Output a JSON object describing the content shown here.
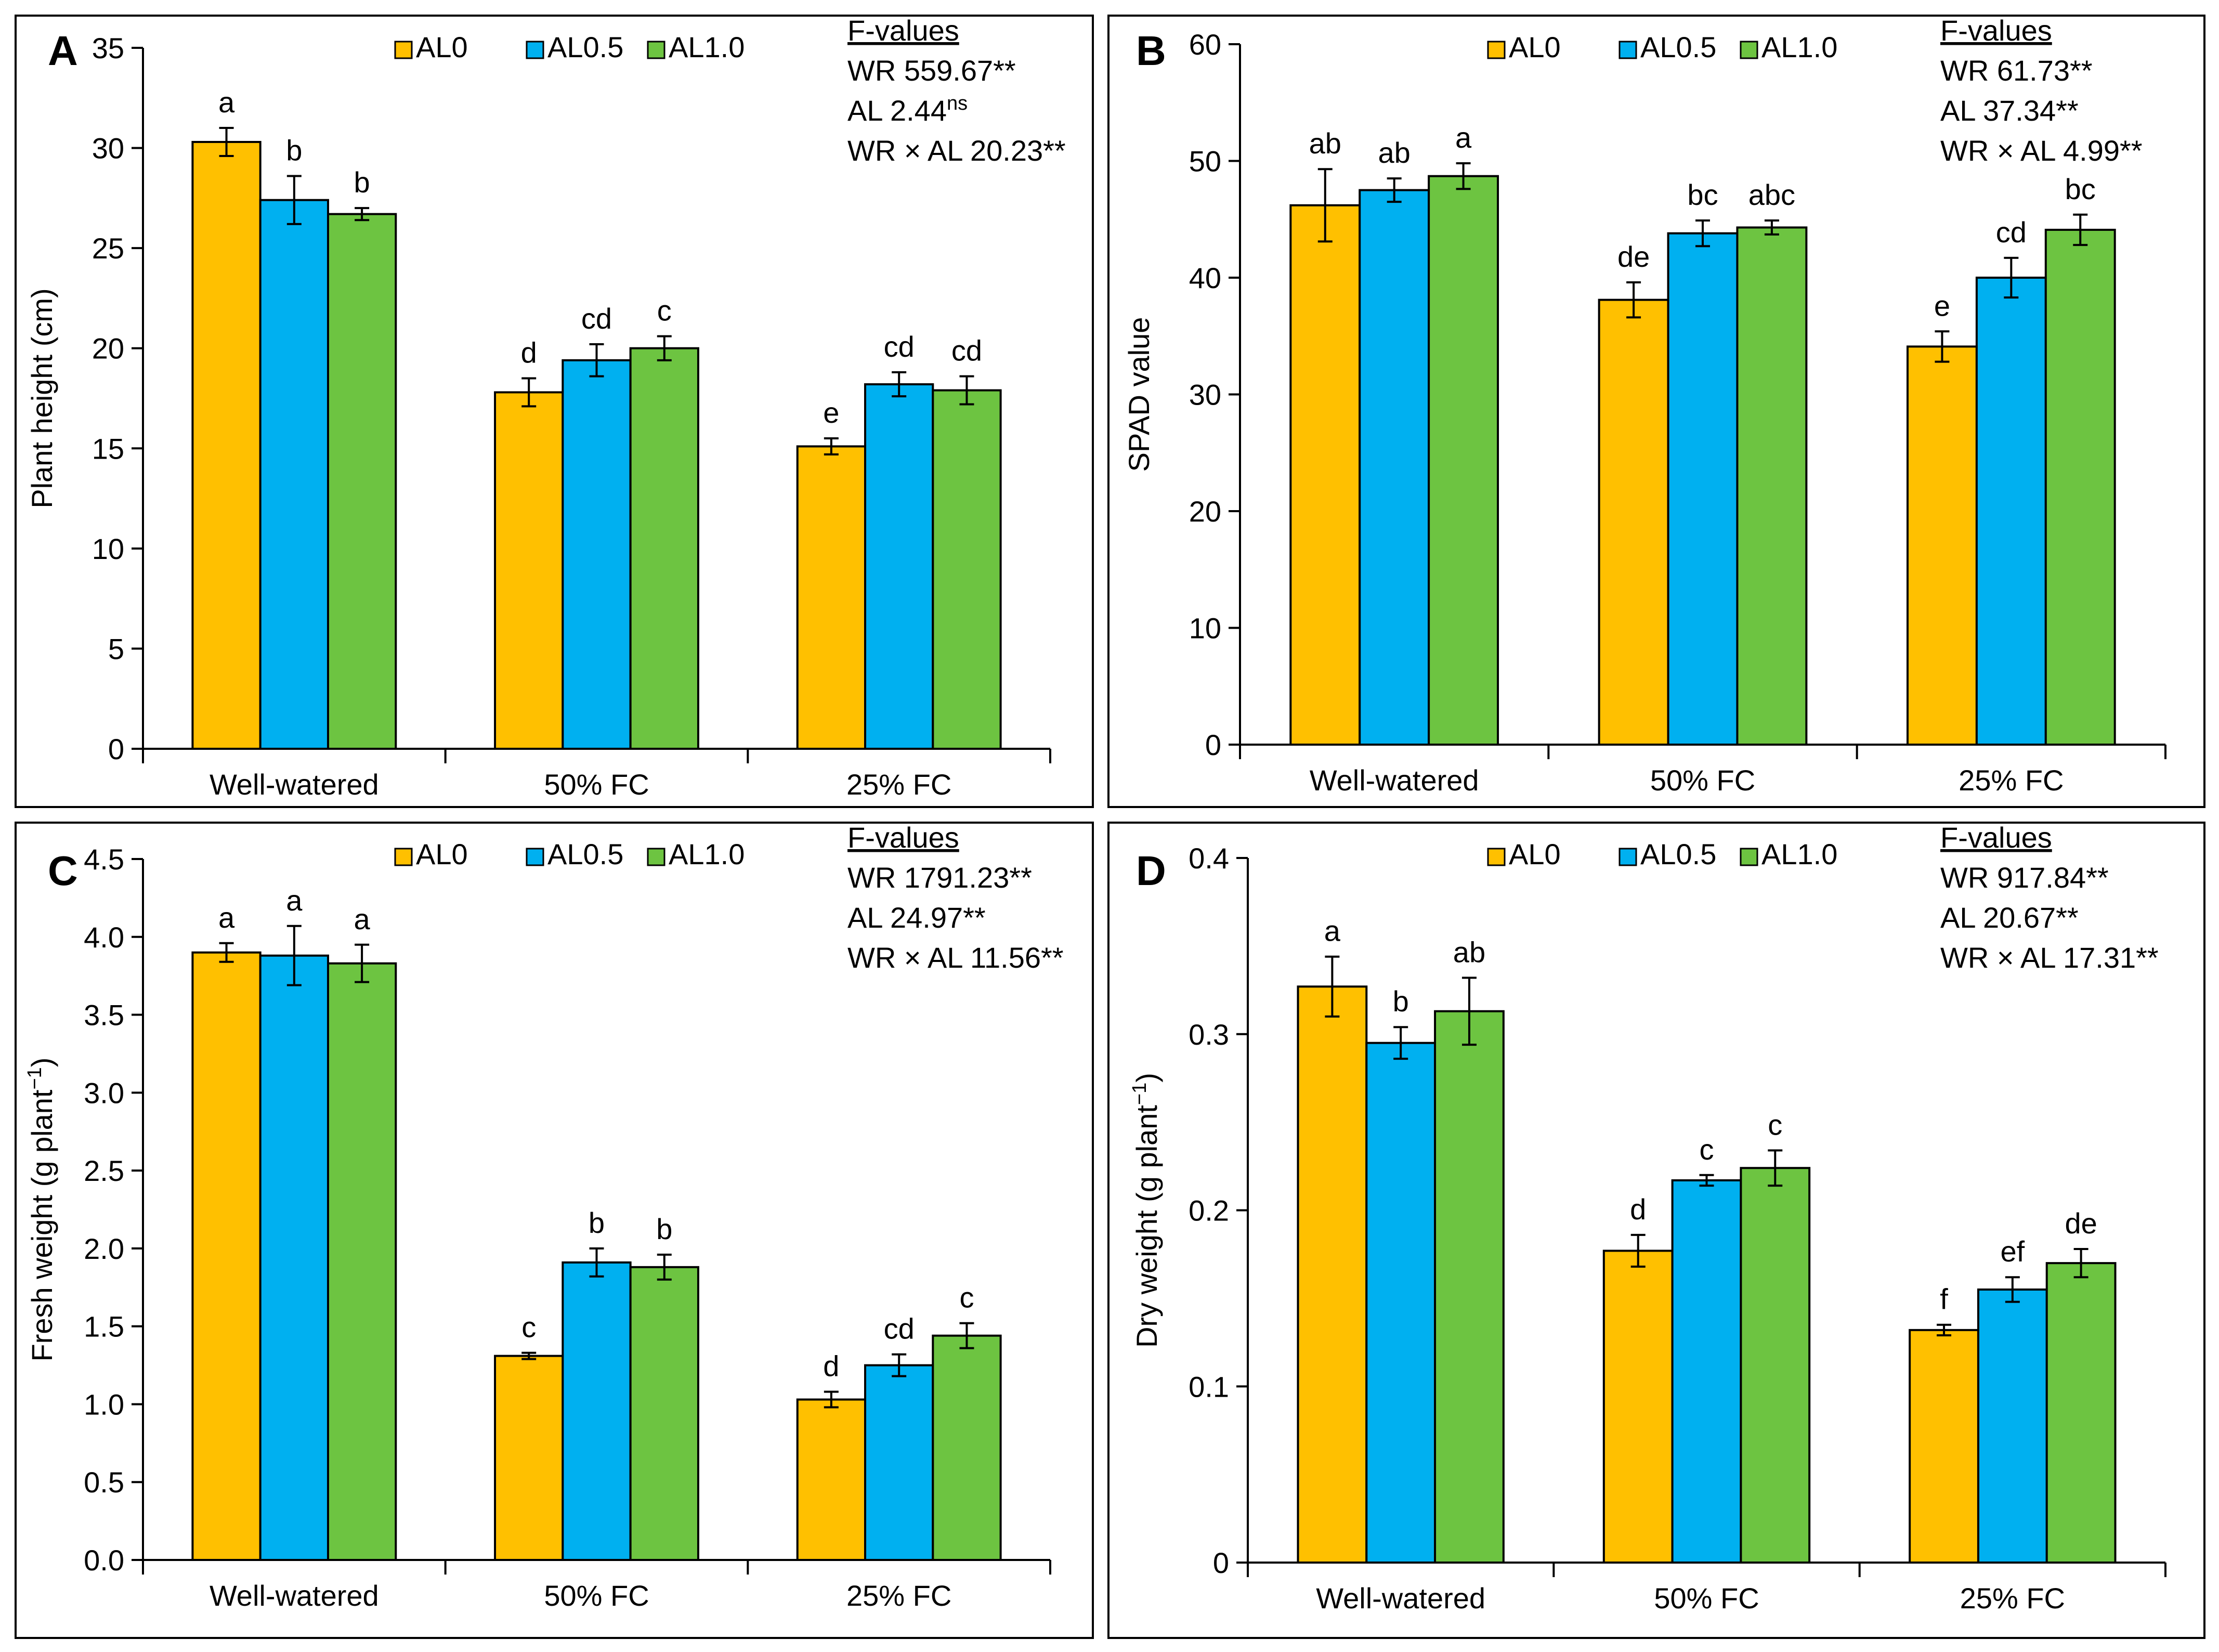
{
  "figure": {
    "legend_labels": [
      "AL0",
      "AL0.5",
      "AL1.0"
    ],
    "stats_heading": "F-values"
  },
  "colors": {
    "AL0": "#FFC000",
    "AL0.5": "#00B0F0",
    "AL1.0": "#6DC441",
    "frame": "#000000"
  },
  "chart_data": [
    {
      "id": "A",
      "type": "bar",
      "panel_label": "A",
      "ylabel": "Plant height (cm)",
      "ylabel_superscript": "",
      "ylabel_suffix": "",
      "categories": [
        "Well-watered",
        "50% FC",
        "25% FC"
      ],
      "ylim": [
        0,
        35
      ],
      "yticks": [
        "0",
        "5",
        "10",
        "15",
        "20",
        "25",
        "30",
        "35"
      ],
      "series": [
        {
          "name": "AL0",
          "values": [
            30.3,
            17.8,
            15.1
          ],
          "errors": [
            0.7,
            0.7,
            0.4
          ],
          "letters": [
            "a",
            "d",
            "e"
          ]
        },
        {
          "name": "AL0.5",
          "values": [
            27.4,
            19.4,
            18.2
          ],
          "errors": [
            1.2,
            0.8,
            0.6
          ],
          "letters": [
            "b",
            "cd",
            "cd"
          ]
        },
        {
          "name": "AL1.0",
          "values": [
            26.7,
            20.0,
            17.9
          ],
          "errors": [
            0.3,
            0.6,
            0.7
          ],
          "letters": [
            "b",
            "c",
            "cd"
          ]
        }
      ],
      "stats": [
        {
          "label": "WR",
          "value": "559.67",
          "sig": "**"
        },
        {
          "label": "AL",
          "value": "2.44",
          "sig": "ns"
        },
        {
          "label": "WR × AL",
          "value": "20.23",
          "sig": "**"
        }
      ]
    },
    {
      "id": "B",
      "type": "bar",
      "panel_label": "B",
      "ylabel": "SPAD value",
      "ylabel_superscript": "",
      "ylabel_suffix": "",
      "categories": [
        "Well-watered",
        "50% FC",
        "25% FC"
      ],
      "ylim": [
        0,
        60
      ],
      "yticks": [
        "0",
        "10",
        "20",
        "30",
        "40",
        "50",
        "60"
      ],
      "series": [
        {
          "name": "AL0",
          "values": [
            46.2,
            38.1,
            34.1
          ],
          "errors": [
            3.1,
            1.5,
            1.3
          ],
          "letters": [
            "ab",
            "de",
            "e"
          ]
        },
        {
          "name": "AL0.5",
          "values": [
            47.5,
            43.8,
            40.0
          ],
          "errors": [
            1.0,
            1.1,
            1.7
          ],
          "letters": [
            "ab",
            "bc",
            "cd"
          ]
        },
        {
          "name": "AL1.0",
          "values": [
            48.7,
            44.3,
            44.1
          ],
          "errors": [
            1.1,
            0.6,
            1.3
          ],
          "letters": [
            "a",
            "abc",
            "bc"
          ]
        }
      ],
      "stats": [
        {
          "label": "WR",
          "value": "61.73",
          "sig": "**"
        },
        {
          "label": "AL",
          "value": "37.34",
          "sig": "**"
        },
        {
          "label": "WR × AL",
          "value": "4.99",
          "sig": "**"
        }
      ]
    },
    {
      "id": "C",
      "type": "bar",
      "panel_label": "C",
      "ylabel": "Fresh weight (g plant",
      "ylabel_superscript": "−1",
      "ylabel_suffix": ")",
      "categories": [
        "Well-watered",
        "50% FC",
        "25% FC"
      ],
      "ylim": [
        0,
        4.5
      ],
      "yticks": [
        "0.0",
        "0.5",
        "1.0",
        "1.5",
        "2.0",
        "2.5",
        "3.0",
        "3.5",
        "4.0",
        "4.5"
      ],
      "series": [
        {
          "name": "AL0",
          "values": [
            3.9,
            1.31,
            1.03
          ],
          "errors": [
            0.06,
            0.02,
            0.05
          ],
          "letters": [
            "a",
            "c",
            "d"
          ]
        },
        {
          "name": "AL0.5",
          "values": [
            3.88,
            1.91,
            1.25
          ],
          "errors": [
            0.19,
            0.09,
            0.07
          ],
          "letters": [
            "a",
            "b",
            "cd"
          ]
        },
        {
          "name": "AL1.0",
          "values": [
            3.83,
            1.88,
            1.44
          ],
          "errors": [
            0.12,
            0.08,
            0.08
          ],
          "letters": [
            "a",
            "b",
            "c"
          ]
        }
      ],
      "stats": [
        {
          "label": "WR",
          "value": "1791.23",
          "sig": "**"
        },
        {
          "label": "AL",
          "value": "24.97",
          "sig": "**"
        },
        {
          "label": "WR × AL",
          "value": "11.56",
          "sig": "**"
        }
      ]
    },
    {
      "id": "D",
      "type": "bar",
      "panel_label": "D",
      "ylabel": "Dry weight (g plant",
      "ylabel_superscript": "−1",
      "ylabel_suffix": ")",
      "categories": [
        "Well-watered",
        "50% FC",
        "25% FC"
      ],
      "ylim": [
        0,
        0.4
      ],
      "yticks": [
        "0",
        "0.1",
        "0.2",
        "0.3",
        "0.4"
      ],
      "series": [
        {
          "name": "AL0",
          "values": [
            0.327,
            0.177,
            0.132
          ],
          "errors": [
            0.017,
            0.009,
            0.003
          ],
          "letters": [
            "a",
            "d",
            "f"
          ]
        },
        {
          "name": "AL0.5",
          "values": [
            0.295,
            0.217,
            0.155
          ],
          "errors": [
            0.009,
            0.003,
            0.007
          ],
          "letters": [
            "b",
            "c",
            "ef"
          ]
        },
        {
          "name": "AL1.0",
          "values": [
            0.313,
            0.224,
            0.17
          ],
          "errors": [
            0.019,
            0.01,
            0.008
          ],
          "letters": [
            "ab",
            "c",
            "de"
          ]
        }
      ],
      "stats": [
        {
          "label": "WR",
          "value": "917.84",
          "sig": "**"
        },
        {
          "label": "AL",
          "value": "20.67",
          "sig": "**"
        },
        {
          "label": "WR × AL",
          "value": "17.31",
          "sig": "**"
        }
      ]
    }
  ]
}
